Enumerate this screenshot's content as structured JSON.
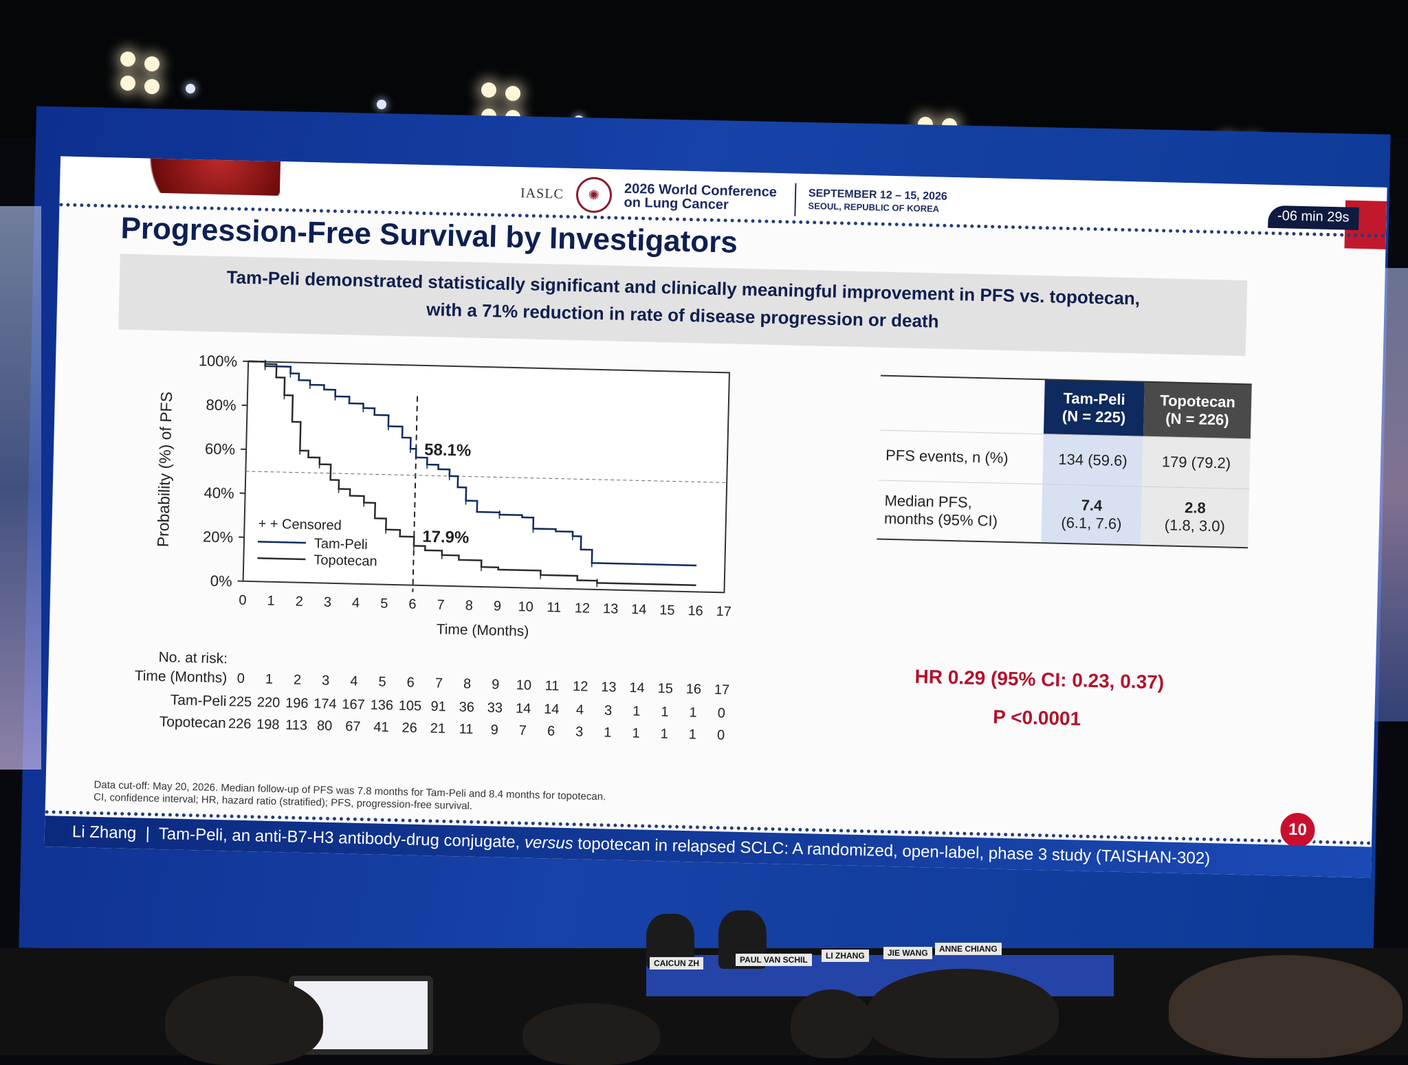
{
  "slide": {
    "org": "IASLC",
    "conference": "2026 World Conference on Lung Cancer",
    "dates": "SEPTEMBER 12 – 15, 2026",
    "location": "SEOUL, REPUBLIC OF KOREA",
    "timer": "-06 min 29s",
    "title": "Progression-Free Survival by Investigators",
    "subtitle_line1": "Tam-Peli demonstrated statistically significant and clinically meaningful improvement in PFS vs. topotecan,",
    "subtitle_line2": "with a 71% reduction in rate of disease progression or death",
    "footnote_line1": "Data cut-off: May 20, 2026. Median follow-up of PFS was 7.8 months for Tam-Peli and 8.4 months for topotecan.",
    "footnote_line2": "CI, confidence interval; HR, hazard ratio (stratified); PFS, progression-free survival.",
    "page_number": "10",
    "footer_presenter": "Li Zhang",
    "footer_separator": "|",
    "footer_text_before": "Tam-Peli, an anti-B7-H3 antibody-drug conjugate,",
    "footer_text_italic": "versus",
    "footer_text_after": "topotecan in relapsed SCLC: A randomized, open-label, phase 3 study (TAISHAN-302)"
  },
  "stats_table": {
    "col_tp": "Tam-Peli",
    "col_tp_n": "(N = 225)",
    "col_tc": "Topotecan",
    "col_tc_n": "(N = 226)",
    "row1_label": "PFS events, n (%)",
    "row1_tp": "134 (59.6)",
    "row1_tc": "179 (79.2)",
    "row2_label1": "Median PFS,",
    "row2_label2": "months (95% CI)",
    "row2_tp_main": "7.4",
    "row2_tp_ci": "(6.1, 7.6)",
    "row2_tc_main": "2.8",
    "row2_tc_ci": "(1.8, 3.0)"
  },
  "hr_text": "HR 0.29 (95% CI: 0.23, 0.37)",
  "p_text": "P <0.0001",
  "nameplates": [
    "CAICUN ZH",
    "PAUL VAN SCHIL",
    "LI ZHANG",
    "JIE WANG",
    "ANNE CHIANG"
  ],
  "colors": {
    "tampeli": "#0e2a5e",
    "topotecan": "#2b2b2b",
    "accent_red": "#b3122b",
    "slide_navy": "#0e1f52"
  },
  "chart_data": {
    "type": "line",
    "ylabel": "Probability (%) of PFS",
    "xlabel": "Time (Months)",
    "xlim": [
      0,
      17
    ],
    "ylim": [
      0,
      100
    ],
    "x_ticks": [
      "0",
      "1",
      "2",
      "3",
      "4",
      "5",
      "6",
      "7",
      "8",
      "9",
      "10",
      "11",
      "12",
      "13",
      "14",
      "15",
      "16",
      "17"
    ],
    "y_ticks": [
      "0%",
      "20%",
      "40%",
      "60%",
      "80%",
      "100%"
    ],
    "legend": [
      "+ + Censored",
      "Tam-Peli",
      "Topotecan"
    ],
    "legend_position": "bottom-left",
    "annotations": [
      {
        "text": "58.1%",
        "x": 6,
        "y": 58.1
      },
      {
        "text": "17.9%",
        "x": 6,
        "y": 17.9
      }
    ],
    "reference_lines": {
      "vertical_x": 6,
      "horizontal_y": 50
    },
    "series": [
      {
        "name": "Tam-Peli",
        "x": [
          0,
          0.6,
          1.0,
          1.5,
          1.8,
          2.2,
          2.7,
          3.1,
          3.6,
          4.1,
          4.5,
          5.0,
          5.5,
          5.8,
          6.0,
          6.4,
          6.8,
          7.2,
          7.5,
          7.8,
          8.2,
          9.0,
          9.8,
          10.2,
          11.0,
          11.6,
          11.9,
          12.3,
          16.0
        ],
        "y": [
          100,
          99,
          98,
          95,
          92,
          90,
          88,
          85,
          82,
          80,
          77,
          72,
          67,
          62,
          58.1,
          55,
          53,
          50,
          45,
          39,
          34,
          33,
          32,
          27,
          26,
          24,
          18,
          12,
          12
        ]
      },
      {
        "name": "Topotecan",
        "x": [
          0,
          0.6,
          1.0,
          1.3,
          1.6,
          1.9,
          2.2,
          2.6,
          3.0,
          3.3,
          3.7,
          4.2,
          4.6,
          5.0,
          5.5,
          6.0,
          6.4,
          7.0,
          7.6,
          8.4,
          9.0,
          10.5,
          11.8,
          12.5,
          16.0
        ],
        "y": [
          100,
          98,
          93,
          85,
          73,
          60,
          57,
          54,
          47,
          43,
          40,
          37,
          30,
          25,
          22,
          17.9,
          16,
          14,
          12,
          9,
          8,
          6,
          4,
          3,
          3
        ]
      }
    ],
    "risk_table": {
      "title": "No. at risk:",
      "time_label": "Time (Months)",
      "times": [
        "0",
        "1",
        "2",
        "3",
        "4",
        "5",
        "6",
        "7",
        "8",
        "9",
        "10",
        "11",
        "12",
        "13",
        "14",
        "15",
        "16",
        "17"
      ],
      "rows": [
        {
          "name": "Tam-Peli",
          "values": [
            "225",
            "220",
            "196",
            "174",
            "167",
            "136",
            "105",
            "91",
            "36",
            "33",
            "14",
            "14",
            "4",
            "3",
            "1",
            "1",
            "1",
            "0"
          ]
        },
        {
          "name": "Topotecan",
          "values": [
            "226",
            "198",
            "113",
            "80",
            "67",
            "41",
            "26",
            "21",
            "11",
            "9",
            "7",
            "6",
            "3",
            "1",
            "1",
            "1",
            "1",
            "0"
          ]
        }
      ]
    }
  }
}
